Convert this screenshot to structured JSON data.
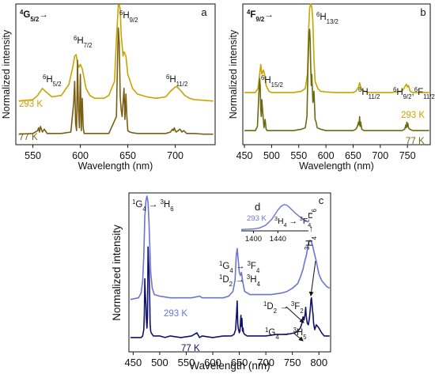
{
  "chart_data": [
    {
      "panel": "a",
      "type": "line",
      "transition": "⁴G₅/₂→",
      "xlabel": "Wavelength (nm)",
      "ylabel": "Normalized intensity",
      "xlim": [
        532,
        742
      ],
      "xticks": [
        550,
        600,
        650,
        700
      ],
      "ylim": [
        0,
        1
      ],
      "series": [
        {
          "name": "293 K",
          "color": "#c9a400",
          "baseline": 0.31,
          "x": [
            535,
            550,
            555,
            560,
            563,
            570,
            580,
            588,
            592,
            594,
            595.5,
            597,
            598.5,
            600,
            602,
            604,
            606,
            610,
            615,
            625,
            630,
            636,
            638,
            640,
            641,
            642,
            643,
            645,
            646,
            648,
            650,
            655,
            660,
            670,
            680,
            690,
            695,
            700,
            702,
            705,
            710,
            715,
            720,
            730,
            740
          ],
          "y": [
            0.31,
            0.32,
            0.35,
            0.4,
            0.38,
            0.34,
            0.35,
            0.43,
            0.55,
            0.63,
            0.64,
            0.58,
            0.55,
            0.57,
            0.54,
            0.47,
            0.4,
            0.35,
            0.33,
            0.33,
            0.35,
            0.45,
            0.75,
            0.99,
            0.995,
            0.96,
            0.78,
            0.63,
            0.66,
            0.63,
            0.5,
            0.4,
            0.36,
            0.34,
            0.33,
            0.34,
            0.38,
            0.41,
            0.41,
            0.39,
            0.35,
            0.33,
            0.32,
            0.315,
            0.31
          ]
        },
        {
          "name": "77 K",
          "color": "#7a5e12",
          "baseline": 0.075,
          "x": [
            535,
            550,
            555,
            556,
            557,
            558,
            560,
            562,
            565,
            570,
            580,
            590,
            593,
            594,
            595,
            596,
            597,
            598,
            599,
            600,
            601,
            602,
            603,
            604,
            606,
            610,
            620,
            630,
            638,
            639,
            640,
            641,
            642,
            643,
            644,
            645,
            646,
            647,
            648,
            649,
            650,
            652,
            655,
            660,
            680,
            690,
            695,
            697,
            698,
            699,
            700,
            701,
            703,
            705,
            707,
            709,
            712,
            720,
            730,
            740
          ],
          "y": [
            0.075,
            0.08,
            0.1,
            0.12,
            0.09,
            0.13,
            0.09,
            0.11,
            0.08,
            0.08,
            0.08,
            0.09,
            0.3,
            0.45,
            0.15,
            0.1,
            0.6,
            0.25,
            0.12,
            0.5,
            0.1,
            0.33,
            0.12,
            0.08,
            0.08,
            0.08,
            0.08,
            0.08,
            0.2,
            0.55,
            0.83,
            0.72,
            0.34,
            0.25,
            0.2,
            0.3,
            0.4,
            0.18,
            0.36,
            0.2,
            0.1,
            0.09,
            0.085,
            0.08,
            0.08,
            0.08,
            0.09,
            0.11,
            0.1,
            0.12,
            0.1,
            0.09,
            0.1,
            0.11,
            0.09,
            0.1,
            0.08,
            0.08,
            0.075,
            0.075
          ]
        }
      ],
      "annotations": [
        "⁶H₅/₂",
        "⁶H₇/₂",
        "⁶H₉/₂",
        "⁶H₁₁/₂"
      ]
    },
    {
      "panel": "b",
      "type": "line",
      "transition": "⁴F₉/₂→",
      "xlabel": "Wavelength (nm)",
      "ylabel": "Normalized intensity",
      "xlim": [
        447,
        792
      ],
      "xticks": [
        450,
        500,
        550,
        600,
        650,
        700,
        750
      ],
      "ylim": [
        0,
        1
      ],
      "series": [
        {
          "name": "293 K",
          "color": "#c9a400",
          "baseline": 0.37,
          "x": [
            450,
            470,
            475,
            478,
            480,
            482,
            485,
            487,
            490,
            495,
            500,
            520,
            540,
            555,
            562,
            566,
            568,
            570,
            572,
            574,
            576,
            578,
            580,
            585,
            590,
            600,
            620,
            640,
            650,
            655,
            660,
            662,
            664,
            666,
            670,
            680,
            700,
            720,
            740,
            745,
            748,
            750,
            752,
            755,
            760,
            770,
            780,
            790
          ],
          "y": [
            0.37,
            0.37,
            0.4,
            0.5,
            0.57,
            0.5,
            0.53,
            0.5,
            0.42,
            0.38,
            0.37,
            0.37,
            0.37,
            0.38,
            0.4,
            0.5,
            0.8,
            0.97,
            1.0,
            0.98,
            0.88,
            0.6,
            0.45,
            0.4,
            0.38,
            0.375,
            0.37,
            0.37,
            0.37,
            0.38,
            0.41,
            0.44,
            0.41,
            0.39,
            0.38,
            0.37,
            0.37,
            0.37,
            0.38,
            0.41,
            0.43,
            0.41,
            0.42,
            0.38,
            0.37,
            0.37,
            0.37,
            0.37
          ]
        },
        {
          "name": "77 K",
          "color": "#6b6a12",
          "baseline": 0.1,
          "x": [
            450,
            470,
            474,
            477,
            478,
            479,
            480,
            481,
            482,
            484,
            486,
            488,
            490,
            492,
            500,
            520,
            540,
            555,
            562,
            565,
            567,
            569,
            570,
            571,
            572,
            573,
            574,
            576,
            578,
            580,
            582,
            584,
            590,
            600,
            640,
            650,
            655,
            658,
            660,
            661,
            662,
            663,
            664,
            666,
            670,
            680,
            720,
            740,
            745,
            747,
            748,
            749,
            750,
            751,
            752,
            754,
            760,
            780,
            790
          ],
          "y": [
            0.1,
            0.1,
            0.13,
            0.4,
            0.47,
            0.42,
            0.25,
            0.2,
            0.32,
            0.22,
            0.12,
            0.18,
            0.11,
            0.1,
            0.1,
            0.1,
            0.1,
            0.11,
            0.12,
            0.2,
            0.55,
            0.8,
            0.82,
            0.74,
            0.55,
            0.42,
            0.5,
            0.3,
            0.38,
            0.18,
            0.16,
            0.12,
            0.11,
            0.1,
            0.1,
            0.1,
            0.11,
            0.13,
            0.16,
            0.14,
            0.2,
            0.13,
            0.16,
            0.11,
            0.1,
            0.1,
            0.1,
            0.1,
            0.11,
            0.14,
            0.12,
            0.16,
            0.13,
            0.15,
            0.12,
            0.11,
            0.1,
            0.1,
            0.1
          ]
        }
      ],
      "annotations": [
        "⁶H₁₅/₂",
        "⁶H₁₃/₂",
        "⁶H₁₁/₂",
        "⁶H₉/₂,⁶F₁₁/₂"
      ]
    },
    {
      "panel": "c",
      "type": "line",
      "xlabel": "Wavelength (nm)",
      "ylabel": "Normalized intensity",
      "xlim": [
        442,
        822
      ],
      "xticks": [
        450,
        500,
        550,
        600,
        650,
        700,
        750,
        800
      ],
      "ylim": [
        0,
        1
      ],
      "series": [
        {
          "name": "293 K",
          "color": "#6b73d6",
          "baseline": 0.34,
          "x": [
            445,
            460,
            465,
            468,
            470,
            472,
            474,
            476,
            478,
            480,
            483,
            486,
            490,
            500,
            520,
            550,
            560,
            575,
            580,
            600,
            620,
            630,
            638,
            642,
            644,
            646,
            648,
            650,
            652,
            654,
            656,
            660,
            670,
            690,
            710,
            730,
            740,
            750,
            760,
            765,
            770,
            772,
            774,
            776,
            778,
            780,
            782,
            784,
            786,
            788,
            790,
            795,
            800,
            805,
            810,
            815,
            820
          ],
          "y": [
            0.33,
            0.34,
            0.37,
            0.45,
            0.6,
            0.85,
            0.95,
            0.98,
            0.94,
            0.8,
            0.5,
            0.4,
            0.36,
            0.35,
            0.34,
            0.34,
            0.34,
            0.35,
            0.34,
            0.34,
            0.34,
            0.35,
            0.38,
            0.45,
            0.6,
            0.65,
            0.58,
            0.5,
            0.48,
            0.5,
            0.45,
            0.38,
            0.36,
            0.36,
            0.36,
            0.37,
            0.38,
            0.4,
            0.43,
            0.47,
            0.52,
            0.55,
            0.58,
            0.6,
            0.64,
            0.68,
            0.7,
            0.7,
            0.69,
            0.67,
            0.64,
            0.57,
            0.49,
            0.45,
            0.43,
            0.41,
            0.4
          ]
        },
        {
          "name": "77 K",
          "color": "#12126b",
          "baseline": 0.1,
          "x": [
            445,
            465,
            468,
            470,
            471,
            472,
            473,
            474,
            475,
            476,
            477,
            478,
            479,
            480,
            481,
            482,
            483,
            484,
            486,
            488,
            490,
            495,
            500,
            510,
            520,
            540,
            560,
            570,
            575,
            580,
            600,
            620,
            635,
            640,
            643,
            645,
            646,
            647,
            648,
            650,
            651,
            652,
            653,
            654,
            655,
            656,
            657,
            658,
            660,
            665,
            680,
            700,
            720,
            740,
            755,
            760,
            765,
            768,
            770,
            772,
            774,
            775,
            776,
            778,
            780,
            782,
            784,
            785,
            786,
            787,
            788,
            789,
            790,
            792,
            795,
            800,
            805,
            810,
            815,
            820
          ],
          "y": [
            0.09,
            0.09,
            0.1,
            0.14,
            0.24,
            0.46,
            0.36,
            0.3,
            0.2,
            0.15,
            0.22,
            0.66,
            0.58,
            0.5,
            0.36,
            0.18,
            0.13,
            0.12,
            0.11,
            0.1,
            0.1,
            0.1,
            0.1,
            0.09,
            0.1,
            0.09,
            0.1,
            0.12,
            0.09,
            0.1,
            0.09,
            0.1,
            0.1,
            0.11,
            0.14,
            0.25,
            0.32,
            0.18,
            0.15,
            0.12,
            0.13,
            0.17,
            0.23,
            0.16,
            0.21,
            0.13,
            0.15,
            0.12,
            0.11,
            0.1,
            0.1,
            0.1,
            0.11,
            0.11,
            0.12,
            0.13,
            0.15,
            0.18,
            0.22,
            0.2,
            0.24,
            0.28,
            0.23,
            0.18,
            0.17,
            0.21,
            0.28,
            0.33,
            0.34,
            0.3,
            0.26,
            0.23,
            0.18,
            0.14,
            0.17,
            0.15,
            0.12,
            0.1,
            0.1,
            0.1
          ]
        }
      ],
      "annotations": [
        "¹G₄ → ³H₆",
        "¹G₄ → ³F₄",
        "¹D₂ → ³H₄",
        "¹D₂ → ³F₂",
        "¹G₄ → ³H₅",
        "³H₄ → ³H₆"
      ]
    },
    {
      "panel": "d",
      "type": "line",
      "inset_of": "c",
      "xlim": [
        1380,
        1490
      ],
      "xticks": [
        1400,
        1440
      ],
      "ylim": [
        0,
        1
      ],
      "series": [
        {
          "name": "293 K",
          "color": "#6b73d6",
          "x": [
            1380,
            1400,
            1410,
            1420,
            1430,
            1440,
            1445,
            1450,
            1455,
            1460,
            1470,
            1480,
            1490
          ],
          "y": [
            0.02,
            0.04,
            0.08,
            0.18,
            0.4,
            0.75,
            0.88,
            0.95,
            0.92,
            0.82,
            0.6,
            0.42,
            0.3
          ]
        }
      ],
      "annotation": "³H₄ → ³F₄"
    }
  ]
}
